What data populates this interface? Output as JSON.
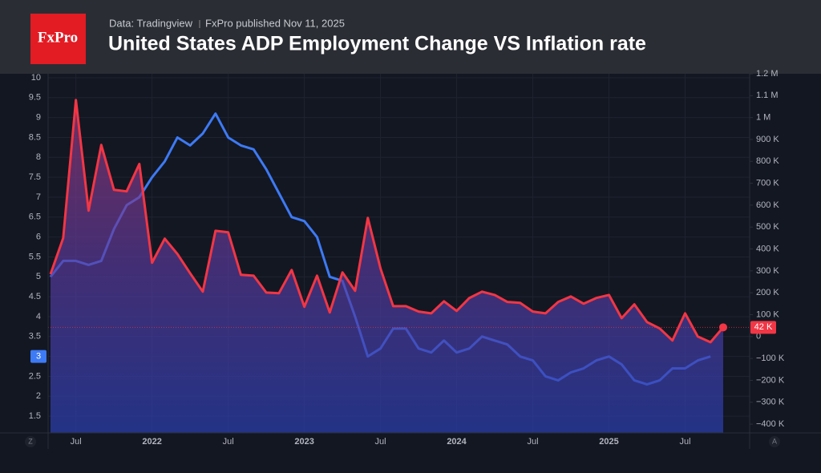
{
  "header": {
    "logo": "FxPro",
    "source": "Data: Tradingview",
    "published": "FxPro published Nov 11, 2025"
  },
  "controls": {
    "left": "Z",
    "right": "A"
  },
  "chart_data": {
    "type": "line",
    "title": "United States ADP Employment Change VS Inflation rate",
    "categories": [
      null,
      null,
      "Jul",
      null,
      null,
      null,
      null,
      null,
      "2022",
      null,
      null,
      null,
      null,
      null,
      "Jul",
      null,
      null,
      null,
      null,
      null,
      "2023",
      null,
      null,
      null,
      null,
      null,
      "Jul",
      null,
      null,
      null,
      null,
      null,
      "2024",
      null,
      null,
      null,
      null,
      null,
      "Jul",
      null,
      null,
      null,
      null,
      null,
      "2025",
      null,
      null,
      null,
      null,
      null,
      "Jul",
      null,
      null,
      null
    ],
    "series": [
      {
        "color": "#3d7af5",
        "axis": "y",
        "values": [
          5.0,
          5.4,
          5.4,
          5.3,
          5.4,
          6.2,
          6.8,
          7.0,
          7.5,
          7.9,
          8.5,
          8.3,
          8.6,
          9.1,
          8.5,
          8.3,
          8.2,
          7.7,
          7.1,
          6.5,
          6.4,
          6.0,
          5.0,
          4.9,
          4.0,
          3.0,
          3.2,
          3.7,
          3.7,
          3.2,
          3.1,
          3.4,
          3.1,
          3.2,
          3.5,
          3.4,
          3.3,
          3.0,
          2.9,
          2.5,
          2.4,
          2.6,
          2.7,
          2.9,
          3.0,
          2.8,
          2.4,
          2.3,
          2.4,
          2.7,
          2.7,
          2.9,
          3.0,
          null
        ],
        "value_labels": [
          null,
          null,
          null,
          null,
          null,
          null,
          null,
          null,
          null,
          null,
          null,
          null,
          null,
          null,
          null,
          null,
          null,
          null,
          null,
          null,
          null,
          null,
          null,
          null,
          null,
          null,
          null,
          null,
          null,
          null,
          null,
          null,
          null,
          null,
          null,
          null,
          null,
          null,
          null,
          null,
          null,
          null,
          null,
          null,
          null,
          null,
          null,
          null,
          null,
          null,
          null,
          null,
          "3",
          null
        ]
      },
      {
        "color": "#f23645",
        "axis": "y2",
        "values": [
          285000,
          450000,
          1080000,
          575000,
          875000,
          670000,
          663000,
          788000,
          337000,
          447000,
          377000,
          289000,
          205000,
          483000,
          476000,
          282000,
          278000,
          201000,
          198000,
          304000,
          136000,
          278000,
          110000,
          293000,
          209000,
          542000,
          311000,
          139000,
          139000,
          114000,
          106000,
          161000,
          117000,
          176000,
          205000,
          190000,
          158000,
          154000,
          114000,
          106000,
          158000,
          183000,
          150000,
          176000,
          190000,
          84000,
          147000,
          66000,
          37000,
          -18000,
          106000,
          0,
          -26000,
          42000
        ],
        "value_labels": [
          null,
          null,
          null,
          null,
          null,
          null,
          null,
          null,
          null,
          null,
          null,
          null,
          null,
          null,
          null,
          null,
          null,
          null,
          null,
          null,
          null,
          null,
          null,
          null,
          null,
          null,
          null,
          null,
          null,
          null,
          null,
          null,
          null,
          null,
          null,
          null,
          null,
          null,
          null,
          null,
          null,
          null,
          null,
          null,
          null,
          null,
          null,
          null,
          null,
          null,
          null,
          null,
          null,
          "42 K"
        ]
      }
    ],
    "ylim": [
      1.08,
      10.1
    ],
    "yticks": [
      1.5,
      2,
      2.5,
      3,
      3.5,
      4,
      4.5,
      5,
      5.5,
      6,
      6.5,
      7,
      7.5,
      8,
      8.5,
      9,
      9.5,
      10
    ],
    "y2lim": [
      -440000,
      1200000
    ],
    "y2ticks": [
      {
        "value": -400000,
        "label": "−400 K"
      },
      {
        "value": -300000,
        "label": "−300 K"
      },
      {
        "value": -200000,
        "label": "−200 K"
      },
      {
        "value": -100000,
        "label": "−100 K"
      },
      0,
      {
        "value": 100000,
        "label": "100 K"
      },
      {
        "value": 200000,
        "label": "200 K"
      },
      {
        "value": 300000,
        "label": "300 K"
      },
      {
        "value": 400000,
        "label": "400 K"
      },
      {
        "value": 500000,
        "label": "500 K"
      },
      {
        "value": 600000,
        "label": "600 K"
      },
      {
        "value": 700000,
        "label": "700 K"
      },
      {
        "value": 800000,
        "label": "800 K"
      },
      {
        "value": 900000,
        "label": "900 K"
      },
      {
        "value": 1000000,
        "label": "1 M"
      },
      {
        "value": 1100000,
        "label": "1.1 M"
      },
      {
        "value": 1200000,
        "label": "1.2 M"
      }
    ],
    "grid": true
  }
}
